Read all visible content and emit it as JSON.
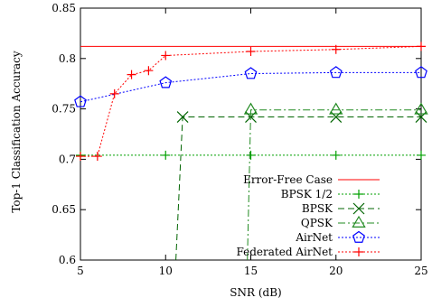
{
  "chart_data": {
    "type": "line",
    "title": "",
    "xlabel": "SNR (dB)",
    "ylabel": "Top-1 Classification Accuracy",
    "xlim": [
      5,
      25
    ],
    "ylim": [
      0.6,
      0.85
    ],
    "xticks": [
      5,
      10,
      15,
      20,
      25
    ],
    "yticks": [
      0.6,
      0.65,
      0.7,
      0.75,
      0.8,
      0.85
    ],
    "xtick_labels": [
      "5",
      "10",
      "15",
      "20",
      "25"
    ],
    "ytick_labels": [
      "0.6",
      "0.65",
      "0.7",
      "0.75",
      "0.8",
      "0.85"
    ],
    "grid": false,
    "legend_position": "bottom-right",
    "series": [
      {
        "name": "Error-Free Case",
        "color": "#ff0000",
        "dash": "solid",
        "marker": "none",
        "x": [
          5,
          25
        ],
        "y": [
          0.812,
          0.812
        ]
      },
      {
        "name": "BPSK 1/2",
        "color": "#00a000",
        "dash": "dotted",
        "marker": "plus",
        "x": [
          5,
          10,
          15,
          20,
          25
        ],
        "y": [
          0.704,
          0.704,
          0.704,
          0.704,
          0.704
        ]
      },
      {
        "name": "BPSK",
        "color": "#006400",
        "dash": "dashed",
        "marker": "x",
        "x": [
          10.6,
          11,
          15,
          20,
          25
        ],
        "y": [
          0.6,
          0.742,
          0.742,
          0.742,
          0.742
        ]
      },
      {
        "name": "QPSK",
        "color": "#228b22",
        "dash": "dashdot",
        "marker": "triangle",
        "x": [
          14.8,
          15,
          20,
          25
        ],
        "y": [
          0.6,
          0.749,
          0.749,
          0.749
        ]
      },
      {
        "name": "AirNet",
        "color": "#0000ff",
        "dash": "dotted",
        "marker": "pentagon",
        "x": [
          5,
          10,
          15,
          20,
          25
        ],
        "y": [
          0.757,
          0.776,
          0.785,
          0.786,
          0.786
        ]
      },
      {
        "name": "Federated AirNet",
        "color": "#ff0000",
        "dash": "dotted",
        "marker": "plus",
        "x": [
          5,
          6,
          7,
          8,
          9,
          10,
          15,
          20,
          25
        ],
        "y": [
          0.703,
          0.703,
          0.765,
          0.784,
          0.788,
          0.803,
          0.807,
          0.809,
          0.812
        ]
      }
    ]
  }
}
